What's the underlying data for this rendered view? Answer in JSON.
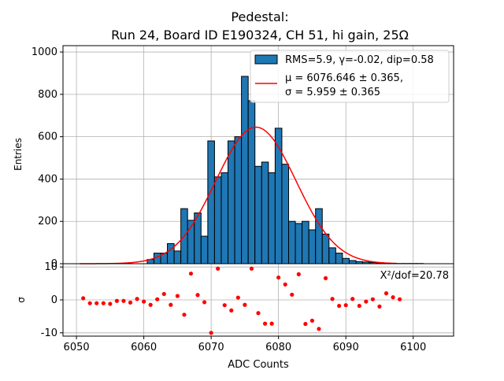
{
  "chart_data": [
    {
      "type": "bar",
      "title_line1": "Pedestal:",
      "title_line2": "Run 24, Board ID E190324, CH 51, hi gain, 25Ω",
      "xlabel": "",
      "ylabel": "Entries",
      "xlim": [
        6048,
        6106
      ],
      "ylim": [
        0,
        1030
      ],
      "yticks": [
        0,
        200,
        400,
        600,
        800,
        1000
      ],
      "grid": true,
      "legend_placement": "top-right",
      "bin_width": 1,
      "bins": [
        {
          "x": 6061,
          "y": 20
        },
        {
          "x": 6062,
          "y": 50
        },
        {
          "x": 6063,
          "y": 50
        },
        {
          "x": 6064,
          "y": 95
        },
        {
          "x": 6065,
          "y": 60
        },
        {
          "x": 6066,
          "y": 260
        },
        {
          "x": 6067,
          "y": 205
        },
        {
          "x": 6068,
          "y": 240
        },
        {
          "x": 6069,
          "y": 130
        },
        {
          "x": 6070,
          "y": 580
        },
        {
          "x": 6071,
          "y": 410
        },
        {
          "x": 6072,
          "y": 430
        },
        {
          "x": 6073,
          "y": 580
        },
        {
          "x": 6074,
          "y": 600
        },
        {
          "x": 6075,
          "y": 885
        },
        {
          "x": 6076,
          "y": 770
        },
        {
          "x": 6077,
          "y": 460
        },
        {
          "x": 6078,
          "y": 480
        },
        {
          "x": 6079,
          "y": 430
        },
        {
          "x": 6080,
          "y": 640
        },
        {
          "x": 6081,
          "y": 470
        },
        {
          "x": 6082,
          "y": 200
        },
        {
          "x": 6083,
          "y": 190
        },
        {
          "x": 6084,
          "y": 200
        },
        {
          "x": 6085,
          "y": 160
        },
        {
          "x": 6086,
          "y": 260
        },
        {
          "x": 6087,
          "y": 140
        },
        {
          "x": 6088,
          "y": 75
        },
        {
          "x": 6089,
          "y": 50
        },
        {
          "x": 6090,
          "y": 25
        },
        {
          "x": 6091,
          "y": 15
        },
        {
          "x": 6092,
          "y": 10
        },
        {
          "x": 6093,
          "y": 8
        },
        {
          "x": 6094,
          "y": 6
        },
        {
          "x": 6095,
          "y": 4
        },
        {
          "x": 6096,
          "y": 3
        },
        {
          "x": 6097,
          "y": 2
        },
        {
          "x": 6098,
          "y": 1
        },
        {
          "x": 6099,
          "y": 1
        },
        {
          "x": 6100,
          "y": 1
        },
        {
          "x": 6101,
          "y": 1
        }
      ],
      "bar_color": "#1f77b4",
      "fit": {
        "mu": 6076.646,
        "sigma": 5.959,
        "amplitude": 645,
        "color": "#ff0000"
      },
      "legend": {
        "hist_label": "RMS=5.9, γ=-0.02, dip=0.58",
        "fit_line1": "μ = 6076.646 ± 0.365,",
        "fit_line2": "σ = 5.959 ± 0.365"
      }
    },
    {
      "type": "scatter",
      "xlabel": "ADC Counts",
      "ylabel": "σ",
      "xlim": [
        6048,
        6106
      ],
      "ylim": [
        -11,
        11
      ],
      "yticks": [
        -10,
        0,
        10
      ],
      "xticks": [
        6050,
        6060,
        6070,
        6080,
        6090,
        6100
      ],
      "grid": true,
      "annotation": "X²/dof=20.78",
      "point_color": "#ff0000",
      "points": [
        {
          "x": 6051,
          "y": 0.5
        },
        {
          "x": 6052,
          "y": -1
        },
        {
          "x": 6053,
          "y": -1
        },
        {
          "x": 6054,
          "y": -1
        },
        {
          "x": 6055,
          "y": -1.2
        },
        {
          "x": 6056,
          "y": -0.3
        },
        {
          "x": 6057,
          "y": -0.3
        },
        {
          "x": 6058,
          "y": -0.8
        },
        {
          "x": 6059,
          "y": 0.3
        },
        {
          "x": 6060,
          "y": -0.5
        },
        {
          "x": 6061,
          "y": -1.5
        },
        {
          "x": 6062,
          "y": 0.2
        },
        {
          "x": 6063,
          "y": 1.8
        },
        {
          "x": 6064,
          "y": -1.5
        },
        {
          "x": 6065,
          "y": 1.2
        },
        {
          "x": 6066,
          "y": -4.5
        },
        {
          "x": 6067,
          "y": 8
        },
        {
          "x": 6068,
          "y": 1.5
        },
        {
          "x": 6069,
          "y": -0.7
        },
        {
          "x": 6070,
          "y": -10
        },
        {
          "x": 6071,
          "y": 9.5
        },
        {
          "x": 6072,
          "y": -1.6
        },
        {
          "x": 6073,
          "y": -3.2
        },
        {
          "x": 6074,
          "y": 0.7
        },
        {
          "x": 6075,
          "y": -1.5
        },
        {
          "x": 6076,
          "y": 9.5
        },
        {
          "x": 6077,
          "y": -4
        },
        {
          "x": 6078,
          "y": -7.2
        },
        {
          "x": 6079,
          "y": -7.2
        },
        {
          "x": 6080,
          "y": 6.8
        },
        {
          "x": 6081,
          "y": 4.7
        },
        {
          "x": 6082,
          "y": 1.6
        },
        {
          "x": 6083,
          "y": 7.8
        },
        {
          "x": 6084,
          "y": -7.3
        },
        {
          "x": 6085,
          "y": -6.3
        },
        {
          "x": 6086,
          "y": -8.8
        },
        {
          "x": 6087,
          "y": 6.6
        },
        {
          "x": 6088,
          "y": 0.3
        },
        {
          "x": 6089,
          "y": -1.8
        },
        {
          "x": 6090,
          "y": -1.6
        },
        {
          "x": 6091,
          "y": 0.3
        },
        {
          "x": 6092,
          "y": -1.8
        },
        {
          "x": 6093,
          "y": -0.5
        },
        {
          "x": 6094,
          "y": 0.2
        },
        {
          "x": 6095,
          "y": -2
        },
        {
          "x": 6096,
          "y": 2
        },
        {
          "x": 6097,
          "y": 0.8
        },
        {
          "x": 6098,
          "y": 0.2
        }
      ]
    }
  ]
}
